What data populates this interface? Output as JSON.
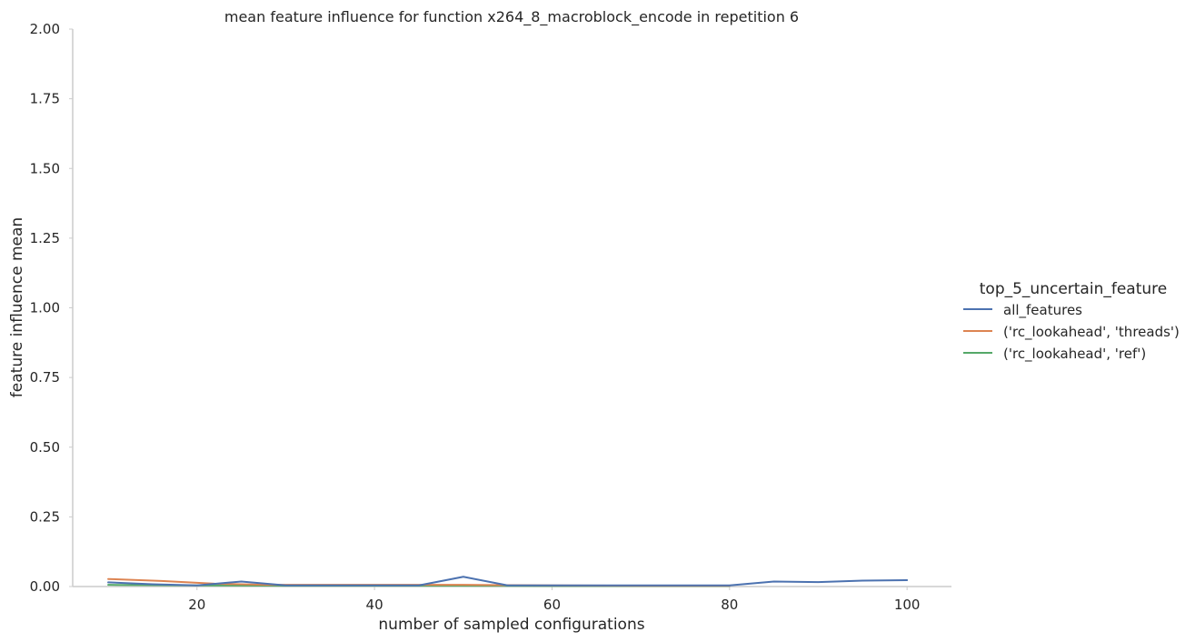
{
  "chart_data": {
    "type": "line",
    "title": "mean feature influence for function x264_8_macroblock_encode in repetition 6",
    "xlabel": "number of sampled configurations",
    "ylabel": "feature influence mean",
    "xlim": [
      6,
      105
    ],
    "ylim": [
      0,
      2.0
    ],
    "xticks": [
      20,
      40,
      60,
      80,
      100
    ],
    "xtick_labels": [
      "20",
      "40",
      "60",
      "80",
      "100"
    ],
    "yticks": [
      0,
      0.25,
      0.5,
      0.75,
      1.0,
      1.25,
      1.5,
      1.75,
      2.0
    ],
    "ytick_labels": [
      "0.00",
      "0.25",
      "0.50",
      "0.75",
      "1.00",
      "1.25",
      "1.50",
      "1.75",
      "2.00"
    ],
    "grid": false,
    "legend": {
      "title": "top_5_uncertain_feature",
      "placement": "right"
    },
    "series": [
      {
        "name": "all_features",
        "color": "#4c72b0",
        "x": [
          10,
          15,
          20,
          25,
          30,
          35,
          40,
          45,
          50,
          55,
          60,
          65,
          70,
          75,
          80,
          85,
          90,
          95,
          100
        ],
        "y": [
          0.015,
          0.008,
          0.004,
          0.018,
          0.004,
          0.004,
          0.004,
          0.004,
          0.035,
          0.004,
          0.004,
          0.004,
          0.004,
          0.004,
          0.004,
          0.018,
          0.016,
          0.021,
          0.023
        ]
      },
      {
        "name": "('rc_lookahead', 'threads')",
        "color": "#dd8452",
        "x": [
          10,
          16,
          22,
          28,
          40,
          45,
          50,
          55,
          60,
          70,
          80
        ],
        "y": [
          0.027,
          0.02,
          0.01,
          0.006,
          0.006,
          0.006,
          0.006,
          0.005,
          0.004,
          0.003,
          0.003
        ]
      },
      {
        "name": "('rc_lookahead', 'ref')",
        "color": "#55a868",
        "x": [
          10,
          20,
          30,
          40,
          50,
          60,
          70,
          80
        ],
        "y": [
          0.006,
          0.004,
          0.003,
          0.003,
          0.003,
          0.002,
          0.002,
          0.002
        ]
      }
    ]
  }
}
